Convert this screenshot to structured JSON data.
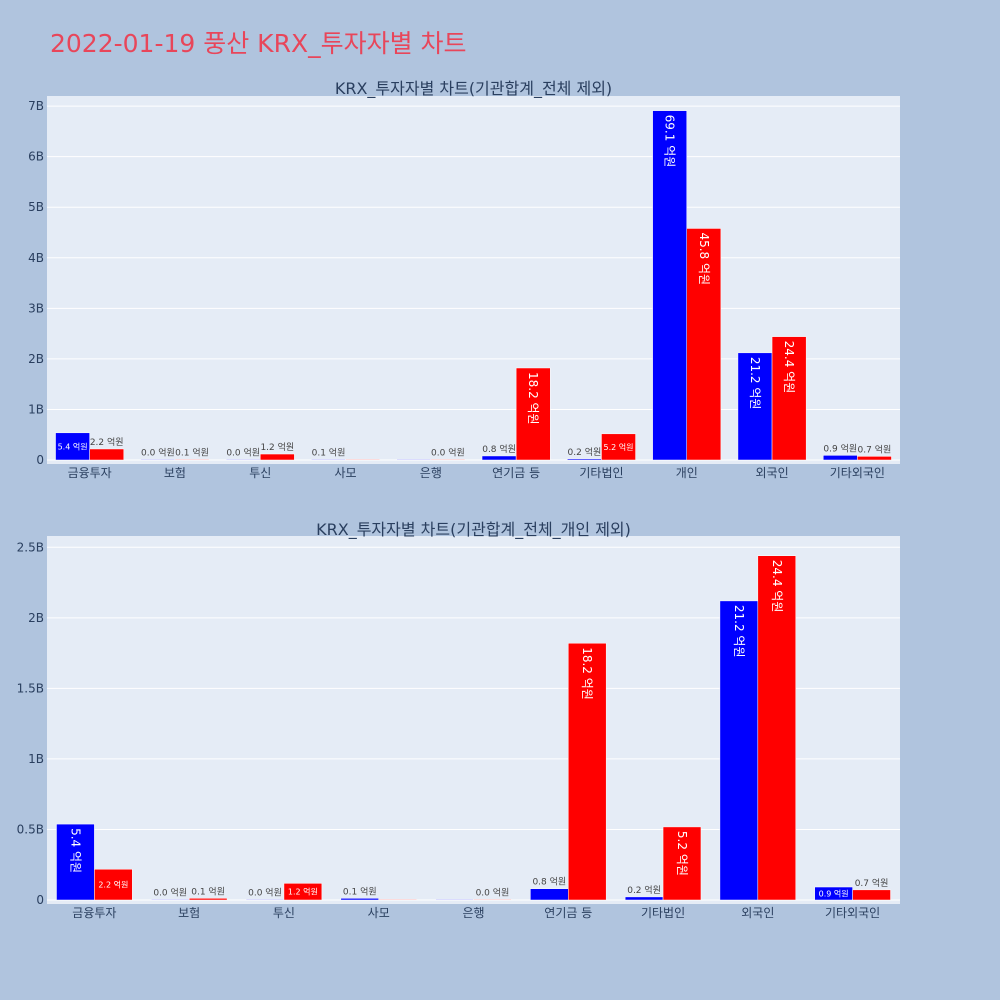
{
  "page": {
    "title": "2022-01-19 풍산 KRX_투자자별 차트"
  },
  "chart_data": [
    {
      "type": "bar",
      "title": "KRX_투자자별 차트(기관합계_전체 제외)",
      "categories": [
        "금융투자",
        "보험",
        "투신",
        "사모",
        "은행",
        "연기금 등",
        "기타법인",
        "개인",
        "외국인",
        "기타외국인"
      ],
      "series": [
        {
          "color": "#0000ff",
          "values": [
            538000000,
            2000000,
            3000000,
            12000000,
            0,
            80000000,
            22000000,
            6910000000,
            2120000000,
            92000000
          ],
          "labels": [
            "5.4 억원",
            "0.0 억원",
            "0.0 억원",
            "0.1 억원",
            "",
            "0.8 억원",
            "0.2 억원",
            "69.1 억원",
            "21.2 억원",
            "0.9 억원"
          ]
        },
        {
          "color": "#ff0000",
          "values": [
            218000000,
            12000000,
            118000000,
            0,
            3000000,
            1820000000,
            518000000,
            4580000000,
            2440000000,
            72000000
          ],
          "labels": [
            "2.2 억원",
            "0.1 억원",
            "1.2 억원",
            "",
            "0.0 억원",
            "18.2 억원",
            "5.2 억원",
            "45.8 억원",
            "24.4 억원",
            "0.7 억원"
          ]
        }
      ],
      "yticks": [
        0,
        1000000000,
        2000000000,
        3000000000,
        4000000000,
        5000000000,
        6000000000,
        7000000000
      ],
      "ytick_labels": [
        "0",
        "1B",
        "2B",
        "3B",
        "4B",
        "5B",
        "6B",
        "7B"
      ],
      "ylim": [
        0,
        7200000000
      ],
      "grid": true,
      "legend": "none"
    },
    {
      "type": "bar",
      "title": "KRX_투자자별 차트(기관합계_전체_개인 제외)",
      "categories": [
        "금융투자",
        "보험",
        "투신",
        "사모",
        "은행",
        "연기금 등",
        "기타법인",
        "외국인",
        "기타외국인"
      ],
      "series": [
        {
          "color": "#0000ff",
          "values": [
            538000000,
            2000000,
            3000000,
            12000000,
            0,
            80000000,
            22000000,
            2120000000,
            92000000
          ],
          "labels": [
            "5.4 억원",
            "0.0 억원",
            "0.0 억원",
            "0.1 억원",
            "",
            "0.8 억원",
            "0.2 억원",
            "21.2 억원",
            "0.9 억원"
          ]
        },
        {
          "color": "#ff0000",
          "values": [
            218000000,
            12000000,
            118000000,
            0,
            3000000,
            1820000000,
            518000000,
            2440000000,
            72000000
          ],
          "labels": [
            "2.2 억원",
            "0.1 억원",
            "1.2 억원",
            "",
            "0.0 억원",
            "18.2 억원",
            "5.2 억원",
            "24.4 억원",
            "0.7 억원"
          ]
        }
      ],
      "yticks": [
        0,
        500000000,
        1000000000,
        1500000000,
        2000000000,
        2500000000
      ],
      "ytick_labels": [
        "0",
        "0.5B",
        "1B",
        "1.5B",
        "2B",
        "2.5B"
      ],
      "ylim": [
        0,
        2580000000
      ],
      "grid": true,
      "legend": "none"
    }
  ]
}
